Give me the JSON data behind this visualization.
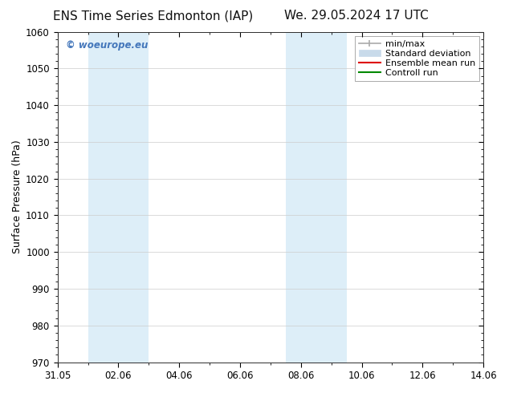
{
  "title_left": "ENS Time Series Edmonton (IAP)",
  "title_right": "We. 29.05.2024 17 UTC",
  "ylabel": "Surface Pressure (hPa)",
  "ylim": [
    970,
    1060
  ],
  "yticks": [
    970,
    980,
    990,
    1000,
    1010,
    1020,
    1030,
    1040,
    1050,
    1060
  ],
  "x_start_days": 0.0,
  "x_end_days": 14.0,
  "x_tick_labels": [
    "31.05",
    "02.06",
    "04.06",
    "06.06",
    "08.06",
    "10.06",
    "12.06",
    "14.06"
  ],
  "x_tick_positions": [
    0.0,
    2.0,
    4.0,
    6.0,
    8.0,
    10.0,
    12.0,
    14.0
  ],
  "shaded_bands": [
    {
      "x_start": 1.0,
      "x_end": 3.0
    },
    {
      "x_start": 7.5,
      "x_end": 9.5
    }
  ],
  "shade_color": "#ddeef8",
  "background_color": "#ffffff",
  "watermark_text": "© woeurope.eu",
  "watermark_color": "#4477bb",
  "legend_entries": [
    {
      "label": "min/max",
      "color": "#aaaaaa",
      "type": "errorbar"
    },
    {
      "label": "Standard deviation",
      "color": "#c8daea",
      "type": "patch"
    },
    {
      "label": "Ensemble mean run",
      "color": "#dd0000",
      "type": "line"
    },
    {
      "label": "Controll run",
      "color": "#008800",
      "type": "line"
    }
  ],
  "title_fontsize": 11,
  "axis_fontsize": 9,
  "tick_fontsize": 8.5,
  "legend_fontsize": 8
}
